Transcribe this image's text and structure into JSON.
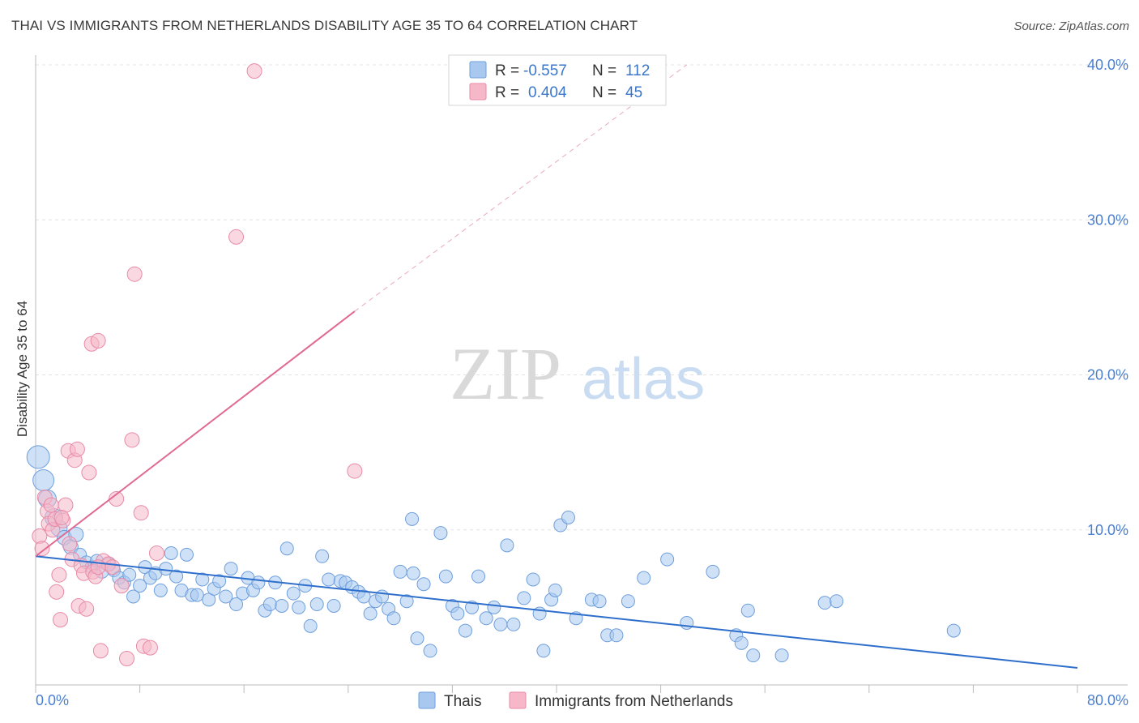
{
  "header": {
    "title": "THAI VS IMMIGRANTS FROM NETHERLANDS DISABILITY AGE 35 TO 64 CORRELATION CHART",
    "source": "Source: ZipAtlas.com"
  },
  "watermark": {
    "zip": "ZIP",
    "atlas": "atlas"
  },
  "legend": {
    "rows": [
      {
        "r_label": "R =",
        "r_value": "-0.557",
        "n_label": "N =",
        "n_value": "112",
        "color": "#a8c8f0",
        "stroke": "#6f9fdc"
      },
      {
        "r_label": "R =",
        "r_value": "0.404",
        "n_label": "N =",
        "n_value": "45",
        "color": "#f6b8c9",
        "stroke": "#e88aa6"
      }
    ]
  },
  "chart_data": {
    "type": "scatter",
    "title": "THAI VS IMMIGRANTS FROM NETHERLANDS DISABILITY AGE 35 TO 64 CORRELATION CHART",
    "xlabel": "",
    "ylabel": "Disability Age 35 to 64",
    "xlim": [
      0,
      80
    ],
    "ylim": [
      0,
      40
    ],
    "x_ticks": [
      "0.0%",
      "80.0%"
    ],
    "y_ticks": [
      {
        "value": 10,
        "label": "10.0%"
      },
      {
        "value": 20,
        "label": "20.0%"
      },
      {
        "value": 30,
        "label": "30.0%"
      },
      {
        "value": 40,
        "label": "40.0%"
      }
    ],
    "grid": true,
    "legend_position": "bottom-center",
    "series": [
      {
        "name": "Thais",
        "color": "#a8c8f0",
        "stroke": "#6f9fdc",
        "trend": {
          "x0": 0,
          "y0": 8.3,
          "x1": 80,
          "y1": 1.1,
          "color": "#2f6fcc"
        },
        "points": [
          [
            0.2,
            14.7,
            14
          ],
          [
            0.6,
            13.2,
            13
          ],
          [
            0.9,
            12.0,
            11
          ],
          [
            1.4,
            10.8,
            11
          ],
          [
            1.8,
            10.1,
            10
          ],
          [
            2.2,
            9.5,
            9
          ],
          [
            2.7,
            8.9,
            9
          ],
          [
            3.1,
            9.7,
            9
          ],
          [
            3.4,
            8.4,
            8
          ],
          [
            3.9,
            7.9,
            8
          ],
          [
            4.3,
            7.6,
            8
          ],
          [
            4.7,
            8.0,
            8
          ],
          [
            5.1,
            7.3,
            8
          ],
          [
            5.6,
            7.8,
            8
          ],
          [
            6.0,
            7.4,
            8
          ],
          [
            6.4,
            6.9,
            8
          ],
          [
            6.8,
            6.6,
            8
          ],
          [
            7.2,
            7.1,
            8
          ],
          [
            7.5,
            5.7,
            8
          ],
          [
            8.0,
            6.4,
            8
          ],
          [
            8.4,
            7.6,
            8
          ],
          [
            8.8,
            6.9,
            8
          ],
          [
            9.2,
            7.2,
            8
          ],
          [
            9.6,
            6.1,
            8
          ],
          [
            10.0,
            7.5,
            8
          ],
          [
            10.4,
            8.5,
            8
          ],
          [
            10.8,
            7.0,
            8
          ],
          [
            11.2,
            6.1,
            8
          ],
          [
            11.6,
            8.4,
            8
          ],
          [
            12.0,
            5.8,
            8
          ],
          [
            12.4,
            5.8,
            8
          ],
          [
            12.8,
            6.8,
            8
          ],
          [
            13.3,
            5.5,
            8
          ],
          [
            13.7,
            6.2,
            8
          ],
          [
            14.1,
            6.7,
            8
          ],
          [
            14.6,
            5.7,
            8
          ],
          [
            15.0,
            7.5,
            8
          ],
          [
            15.4,
            5.2,
            8
          ],
          [
            15.9,
            5.9,
            8
          ],
          [
            16.3,
            6.9,
            8
          ],
          [
            16.7,
            6.1,
            8
          ],
          [
            17.1,
            6.6,
            8
          ],
          [
            17.6,
            4.8,
            8
          ],
          [
            18.0,
            5.2,
            8
          ],
          [
            18.4,
            6.6,
            8
          ],
          [
            18.9,
            5.1,
            8
          ],
          [
            19.3,
            8.8,
            8
          ],
          [
            19.8,
            5.9,
            8
          ],
          [
            20.2,
            5.0,
            8
          ],
          [
            20.7,
            6.4,
            8
          ],
          [
            21.1,
            3.8,
            8
          ],
          [
            21.6,
            5.2,
            8
          ],
          [
            22.0,
            8.3,
            8
          ],
          [
            22.5,
            6.8,
            8
          ],
          [
            22.9,
            5.1,
            8
          ],
          [
            23.4,
            6.7,
            8
          ],
          [
            23.8,
            6.6,
            8
          ],
          [
            24.3,
            6.3,
            8
          ],
          [
            24.8,
            6.0,
            8
          ],
          [
            25.2,
            5.7,
            8
          ],
          [
            25.7,
            4.6,
            8
          ],
          [
            26.1,
            5.4,
            8
          ],
          [
            26.6,
            5.7,
            8
          ],
          [
            27.1,
            4.9,
            8
          ],
          [
            27.5,
            4.3,
            8
          ],
          [
            28.0,
            7.3,
            8
          ],
          [
            28.5,
            5.4,
            8
          ],
          [
            28.9,
            10.7,
            8
          ],
          [
            29.3,
            3.0,
            8
          ],
          [
            29.8,
            6.5,
            8
          ],
          [
            30.3,
            2.2,
            8
          ],
          [
            31.1,
            9.8,
            8
          ],
          [
            31.5,
            7.0,
            8
          ],
          [
            32.0,
            5.1,
            8
          ],
          [
            32.4,
            4.6,
            8
          ],
          [
            33.0,
            3.5,
            8
          ],
          [
            33.5,
            5.0,
            8
          ],
          [
            34.0,
            7.0,
            8
          ],
          [
            34.6,
            4.3,
            8
          ],
          [
            35.2,
            5.0,
            8
          ],
          [
            35.7,
            3.9,
            8
          ],
          [
            36.2,
            9.0,
            8
          ],
          [
            36.7,
            3.9,
            8
          ],
          [
            37.5,
            5.6,
            8
          ],
          [
            38.2,
            6.8,
            8
          ],
          [
            38.7,
            4.6,
            8
          ],
          [
            39.0,
            2.2,
            8
          ],
          [
            39.6,
            5.5,
            8
          ],
          [
            39.9,
            6.1,
            8
          ],
          [
            40.3,
            10.3,
            8
          ],
          [
            40.9,
            10.8,
            8
          ],
          [
            41.5,
            4.3,
            8
          ],
          [
            42.7,
            5.5,
            8
          ],
          [
            43.3,
            5.4,
            8
          ],
          [
            43.9,
            3.2,
            8
          ],
          [
            44.6,
            3.2,
            8
          ],
          [
            45.5,
            5.4,
            8
          ],
          [
            46.7,
            6.9,
            8
          ],
          [
            48.5,
            8.1,
            8
          ],
          [
            50.0,
            4.0,
            8
          ],
          [
            52.0,
            7.3,
            8
          ],
          [
            53.8,
            3.2,
            8
          ],
          [
            54.2,
            2.7,
            8
          ],
          [
            54.7,
            4.8,
            8
          ],
          [
            55.1,
            1.9,
            8
          ],
          [
            57.3,
            1.9,
            8
          ],
          [
            60.6,
            5.3,
            8
          ],
          [
            61.5,
            5.4,
            8
          ],
          [
            70.5,
            3.5,
            8
          ],
          [
            29.0,
            7.2,
            8
          ]
        ]
      },
      {
        "name": "Immigrants from Netherlands",
        "color": "#f6b8c9",
        "stroke": "#e88aa6",
        "trend": {
          "x0": 0,
          "y0": 8.3,
          "x1": 24.5,
          "y1": 24.1,
          "color": "#e06a93"
        },
        "trend_extension": {
          "x0": 24.5,
          "y0": 24.1,
          "x1": 50,
          "y1": 40.0
        },
        "points": [
          [
            0.3,
            9.6,
            9
          ],
          [
            0.5,
            8.8,
            9
          ],
          [
            0.7,
            12.1,
            9
          ],
          [
            0.9,
            11.2,
            9
          ],
          [
            1.0,
            10.4,
            9
          ],
          [
            1.2,
            11.6,
            9
          ],
          [
            1.3,
            10.0,
            9
          ],
          [
            1.5,
            10.7,
            9
          ],
          [
            1.6,
            6.0,
            9
          ],
          [
            1.8,
            7.1,
            9
          ],
          [
            1.9,
            4.2,
            9
          ],
          [
            2.1,
            10.6,
            9
          ],
          [
            2.3,
            11.6,
            9
          ],
          [
            2.5,
            15.1,
            9
          ],
          [
            2.6,
            9.1,
            9
          ],
          [
            2.8,
            8.1,
            9
          ],
          [
            3.0,
            14.5,
            9
          ],
          [
            3.2,
            15.2,
            9
          ],
          [
            3.3,
            5.1,
            9
          ],
          [
            3.5,
            7.7,
            9
          ],
          [
            3.7,
            7.2,
            9
          ],
          [
            3.9,
            4.9,
            9
          ],
          [
            4.1,
            13.7,
            9
          ],
          [
            4.3,
            22.0,
            9
          ],
          [
            4.4,
            7.3,
            9
          ],
          [
            4.6,
            7.0,
            9
          ],
          [
            4.8,
            22.2,
            9
          ],
          [
            5.0,
            2.2,
            9
          ],
          [
            5.2,
            8.0,
            9
          ],
          [
            5.6,
            7.8,
            9
          ],
          [
            5.9,
            7.6,
            9
          ],
          [
            6.2,
            12.0,
            9
          ],
          [
            6.6,
            6.4,
            9
          ],
          [
            7.0,
            1.7,
            9
          ],
          [
            7.4,
            15.8,
            9
          ],
          [
            7.6,
            26.5,
            9
          ],
          [
            8.1,
            11.1,
            9
          ],
          [
            8.3,
            2.5,
            9
          ],
          [
            8.8,
            2.4,
            9
          ],
          [
            9.3,
            8.5,
            9
          ],
          [
            15.4,
            28.9,
            9
          ],
          [
            16.8,
            39.6,
            9
          ],
          [
            24.5,
            13.8,
            9
          ],
          [
            4.8,
            7.6,
            9
          ],
          [
            2.0,
            10.8,
            9
          ]
        ]
      }
    ]
  },
  "bottom_legend": {
    "items": [
      {
        "label": "Thais",
        "color": "#a8c8f0",
        "stroke": "#6f9fdc"
      },
      {
        "label": "Immigrants from Netherlands",
        "color": "#f6b8c9",
        "stroke": "#e88aa6"
      }
    ]
  }
}
